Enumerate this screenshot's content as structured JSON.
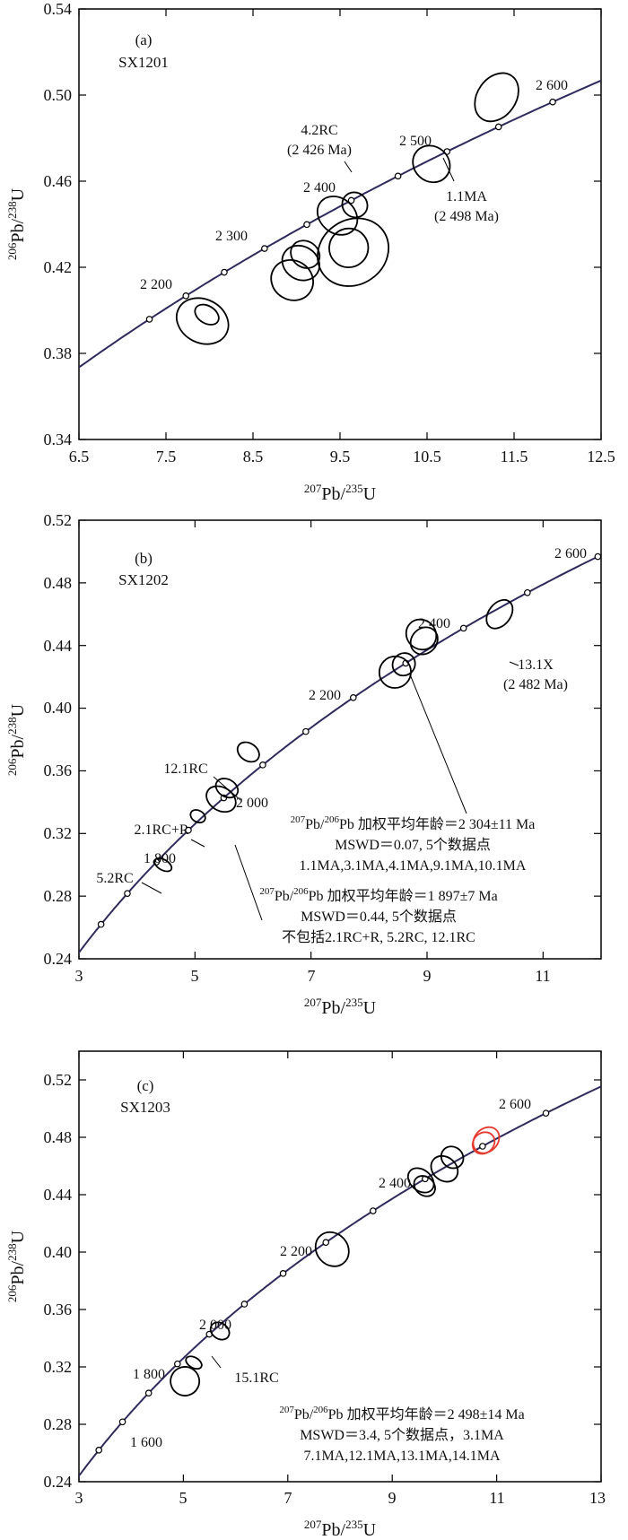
{
  "chart_data": [
    {
      "type": "scatter",
      "panel_label": "(a)",
      "sample": "SX1201",
      "xlabel": "207Pb/235U",
      "ylabel": "206Pb/238U",
      "xlim": [
        6.5,
        12.5
      ],
      "ylim": [
        0.34,
        0.54
      ],
      "xticks": [
        "6.5",
        "7.5",
        "8.5",
        "9.5",
        "10.5",
        "11.5",
        "12.5"
      ],
      "yticks": [
        "0.34",
        "0.38",
        "0.42",
        "0.46",
        "0.50",
        "0.54"
      ],
      "concordia_age_labels": [
        "2 200",
        "2 300",
        "2 400",
        "2 500",
        "2 600"
      ],
      "annotations": [
        {
          "text": "4.2RC"
        },
        {
          "text": "(2 426 Ma)"
        },
        {
          "text": "1.1MA"
        },
        {
          "text": "(2 498 Ma)"
        }
      ],
      "ellipses": [
        {
          "x": 7.92,
          "y": 0.395,
          "w": 0.5,
          "h": 0.025,
          "rot": -62,
          "color": "#000000"
        },
        {
          "x": 7.97,
          "y": 0.398,
          "w": 0.2,
          "h": 0.012,
          "rot": -58,
          "color": "#000000"
        },
        {
          "x": 8.95,
          "y": 0.414,
          "w": 0.45,
          "h": 0.02,
          "rot": -58,
          "color": "#000000"
        },
        {
          "x": 9.05,
          "y": 0.422,
          "w": 0.38,
          "h": 0.018,
          "rot": -58,
          "color": "#000000"
        },
        {
          "x": 9.1,
          "y": 0.426,
          "w": 0.3,
          "h": 0.014,
          "rot": -55,
          "color": "#000000"
        },
        {
          "x": 9.47,
          "y": 0.444,
          "w": 0.4,
          "h": 0.02,
          "rot": -50,
          "color": "#000000"
        },
        {
          "x": 9.67,
          "y": 0.449,
          "w": 0.28,
          "h": 0.012,
          "rot": -48,
          "color": "#000000"
        },
        {
          "x": 9.65,
          "y": 0.427,
          "w": 0.85,
          "h": 0.03,
          "rot": -35,
          "color": "#000000"
        },
        {
          "x": 9.6,
          "y": 0.429,
          "w": 0.45,
          "h": 0.018,
          "rot": -40,
          "color": "#000000"
        },
        {
          "x": 10.55,
          "y": 0.468,
          "w": 0.4,
          "h": 0.018,
          "rot": -48,
          "color": "#000000"
        },
        {
          "x": 11.3,
          "y": 0.499,
          "w": 0.6,
          "h": 0.018,
          "rot": -55,
          "color": "#000000"
        }
      ]
    },
    {
      "type": "scatter",
      "panel_label": "(b)",
      "sample": "SX1202",
      "xlabel": "207Pb/235U",
      "ylabel": "206Pb/238U",
      "xlim": [
        3,
        12
      ],
      "ylim": [
        0.24,
        0.52
      ],
      "xticks": [
        "3",
        "5",
        "7",
        "9",
        "11"
      ],
      "yticks": [
        "0.24",
        "0.28",
        "0.32",
        "0.36",
        "0.40",
        "0.44",
        "0.48",
        "0.52"
      ],
      "concordia_age_labels": [
        "1 800",
        "2 000",
        "2 200",
        "2 400",
        "2 600"
      ],
      "annotations": [
        {
          "text": "12.1RC"
        },
        {
          "text": "2.1RC+R"
        },
        {
          "text": "5.2RC"
        },
        {
          "text": "13.1X"
        },
        {
          "text": "(2 482 Ma)"
        }
      ],
      "weighted_mean_1": {
        "age_prefix": "207Pb/206Pb",
        "age_text": "加权平均年龄＝2 304±11 Ma",
        "line2": "MSWD＝0.07, 5个数据点",
        "line3": "1.1MA,3.1MA,4.1MA,9.1MA,10.1MA"
      },
      "weighted_mean_2": {
        "age_prefix": "207Pb/206Pb",
        "age_text": "加权平均年龄＝1 897±7 Ma",
        "line2": "MSWD＝0.44, 5个数据点",
        "line3": "不包括2.1RC+R, 5.2RC, 12.1RC"
      },
      "ellipses": [
        {
          "x": 4.45,
          "y": 0.3,
          "w": 0.18,
          "h": 0.012,
          "rot": -60,
          "color": "#000000"
        },
        {
          "x": 5.05,
          "y": 0.331,
          "w": 0.2,
          "h": 0.01,
          "rot": -60,
          "color": "#000000"
        },
        {
          "x": 5.45,
          "y": 0.342,
          "w": 0.4,
          "h": 0.02,
          "rot": -58,
          "color": "#000000"
        },
        {
          "x": 5.55,
          "y": 0.349,
          "w": 0.3,
          "h": 0.015,
          "rot": -60,
          "color": "#000000"
        },
        {
          "x": 5.92,
          "y": 0.372,
          "w": 0.3,
          "h": 0.015,
          "rot": -55,
          "color": "#000000"
        },
        {
          "x": 8.45,
          "y": 0.423,
          "w": 0.55,
          "h": 0.02,
          "rot": -45,
          "color": "#000000"
        },
        {
          "x": 8.6,
          "y": 0.428,
          "w": 0.4,
          "h": 0.014,
          "rot": -45,
          "color": "#000000"
        },
        {
          "x": 8.9,
          "y": 0.447,
          "w": 0.5,
          "h": 0.02,
          "rot": -45,
          "color": "#000000"
        },
        {
          "x": 8.95,
          "y": 0.443,
          "w": 0.5,
          "h": 0.016,
          "rot": -45,
          "color": "#000000"
        },
        {
          "x": 10.25,
          "y": 0.46,
          "w": 0.55,
          "h": 0.014,
          "rot": -52,
          "color": "#000000"
        }
      ]
    },
    {
      "type": "scatter",
      "panel_label": "(c)",
      "sample": "SX1203",
      "xlabel": "207Pb/235U",
      "ylabel": "206Pb/238U",
      "xlim": [
        3,
        13
      ],
      "ylim": [
        0.24,
        0.54
      ],
      "xticks": [
        "3",
        "5",
        "7",
        "9",
        "11",
        "13"
      ],
      "yticks": [
        "0.24",
        "0.28",
        "0.32",
        "0.36",
        "0.40",
        "0.44",
        "0.48",
        "0.52"
      ],
      "concordia_age_labels": [
        "1 600",
        "1 800",
        "2 000",
        "2 200",
        "2 400",
        "2 600"
      ],
      "annotations": [
        {
          "text": "15.1RC"
        }
      ],
      "weighted_mean": {
        "age_prefix": "207Pb/206Pb",
        "age_text": "加权平均年龄＝2 498±14 Ma",
        "line2": "MSWD＝3.4, 5个数据点，3.1MA",
        "line3": "7.1MA,12.1MA,13.1MA,14.1MA"
      },
      "ellipses": [
        {
          "x": 5.03,
          "y": 0.31,
          "w": 0.55,
          "h": 0.02,
          "rot": -15,
          "color": "#000000"
        },
        {
          "x": 5.2,
          "y": 0.323,
          "w": 0.2,
          "h": 0.012,
          "rot": -60,
          "color": "#000000"
        },
        {
          "x": 5.7,
          "y": 0.345,
          "w": 0.3,
          "h": 0.014,
          "rot": -55,
          "color": "#000000"
        },
        {
          "x": 7.85,
          "y": 0.402,
          "w": 0.6,
          "h": 0.025,
          "rot": -40,
          "color": "#000000"
        },
        {
          "x": 9.55,
          "y": 0.45,
          "w": 0.4,
          "h": 0.02,
          "rot": -50,
          "color": "#000000"
        },
        {
          "x": 9.62,
          "y": 0.446,
          "w": 0.35,
          "h": 0.016,
          "rot": -50,
          "color": "#000000"
        },
        {
          "x": 10.0,
          "y": 0.458,
          "w": 0.45,
          "h": 0.02,
          "rot": -50,
          "color": "#000000"
        },
        {
          "x": 10.15,
          "y": 0.466,
          "w": 0.4,
          "h": 0.016,
          "rot": -50,
          "color": "#000000"
        },
        {
          "x": 10.8,
          "y": 0.478,
          "w": 0.55,
          "h": 0.016,
          "rot": -45,
          "color": "#e53a2f"
        },
        {
          "x": 10.75,
          "y": 0.476,
          "w": 0.45,
          "h": 0.014,
          "rot": -42,
          "color": "#e53a2f"
        }
      ]
    }
  ]
}
